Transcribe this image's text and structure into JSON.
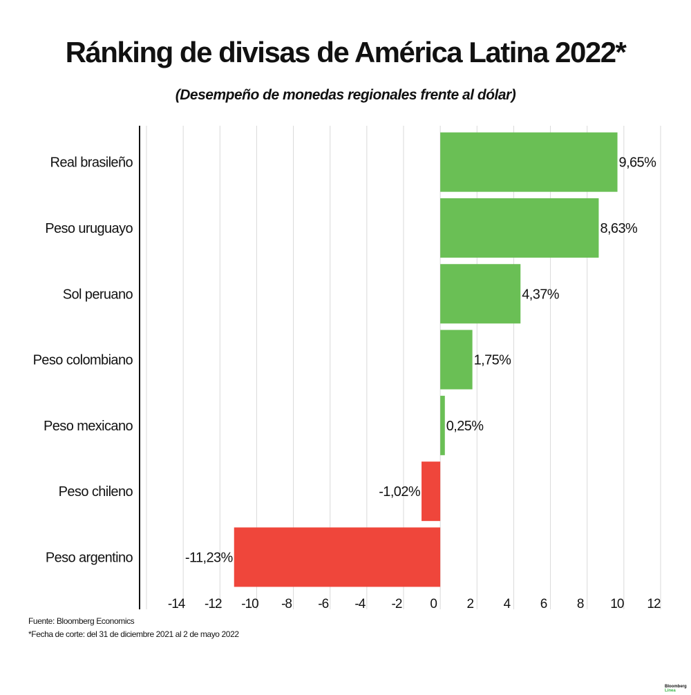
{
  "chart_data": {
    "type": "bar",
    "orientation": "horizontal",
    "title": "Ránking de divisas de América Latina 2022*",
    "subtitle": "(Desempeño de monedas regionales frente al dólar)",
    "categories": [
      "Real brasileño",
      "Peso uruguayo",
      "Sol peruano",
      "Peso colombiano",
      "Peso mexicano",
      "Peso chileno",
      "Peso argentino"
    ],
    "values": [
      9.65,
      8.63,
      4.37,
      1.75,
      0.25,
      -1.02,
      -11.23
    ],
    "data_labels": [
      "9,65%",
      "8,63%",
      "4,37%",
      "1,75%",
      "0,25%",
      "-1,02%",
      "-11,23%"
    ],
    "xlim": [
      -16,
      12
    ],
    "xticks": [
      -14,
      -12,
      -10,
      -8,
      -6,
      -4,
      -2,
      0,
      2,
      4,
      6,
      8,
      10,
      12
    ],
    "grid": true,
    "colors": {
      "positive": "#6abf55",
      "negative": "#ef463b"
    }
  },
  "footer": {
    "source": "Fuente: Bloomberg Economics",
    "note": "*Fecha de corte: del 31 de diciembre 2021 al 2 de mayo 2022"
  },
  "logo": {
    "line1": "Bloomberg",
    "line2": "Línea",
    "color": "#3cb54a"
  }
}
